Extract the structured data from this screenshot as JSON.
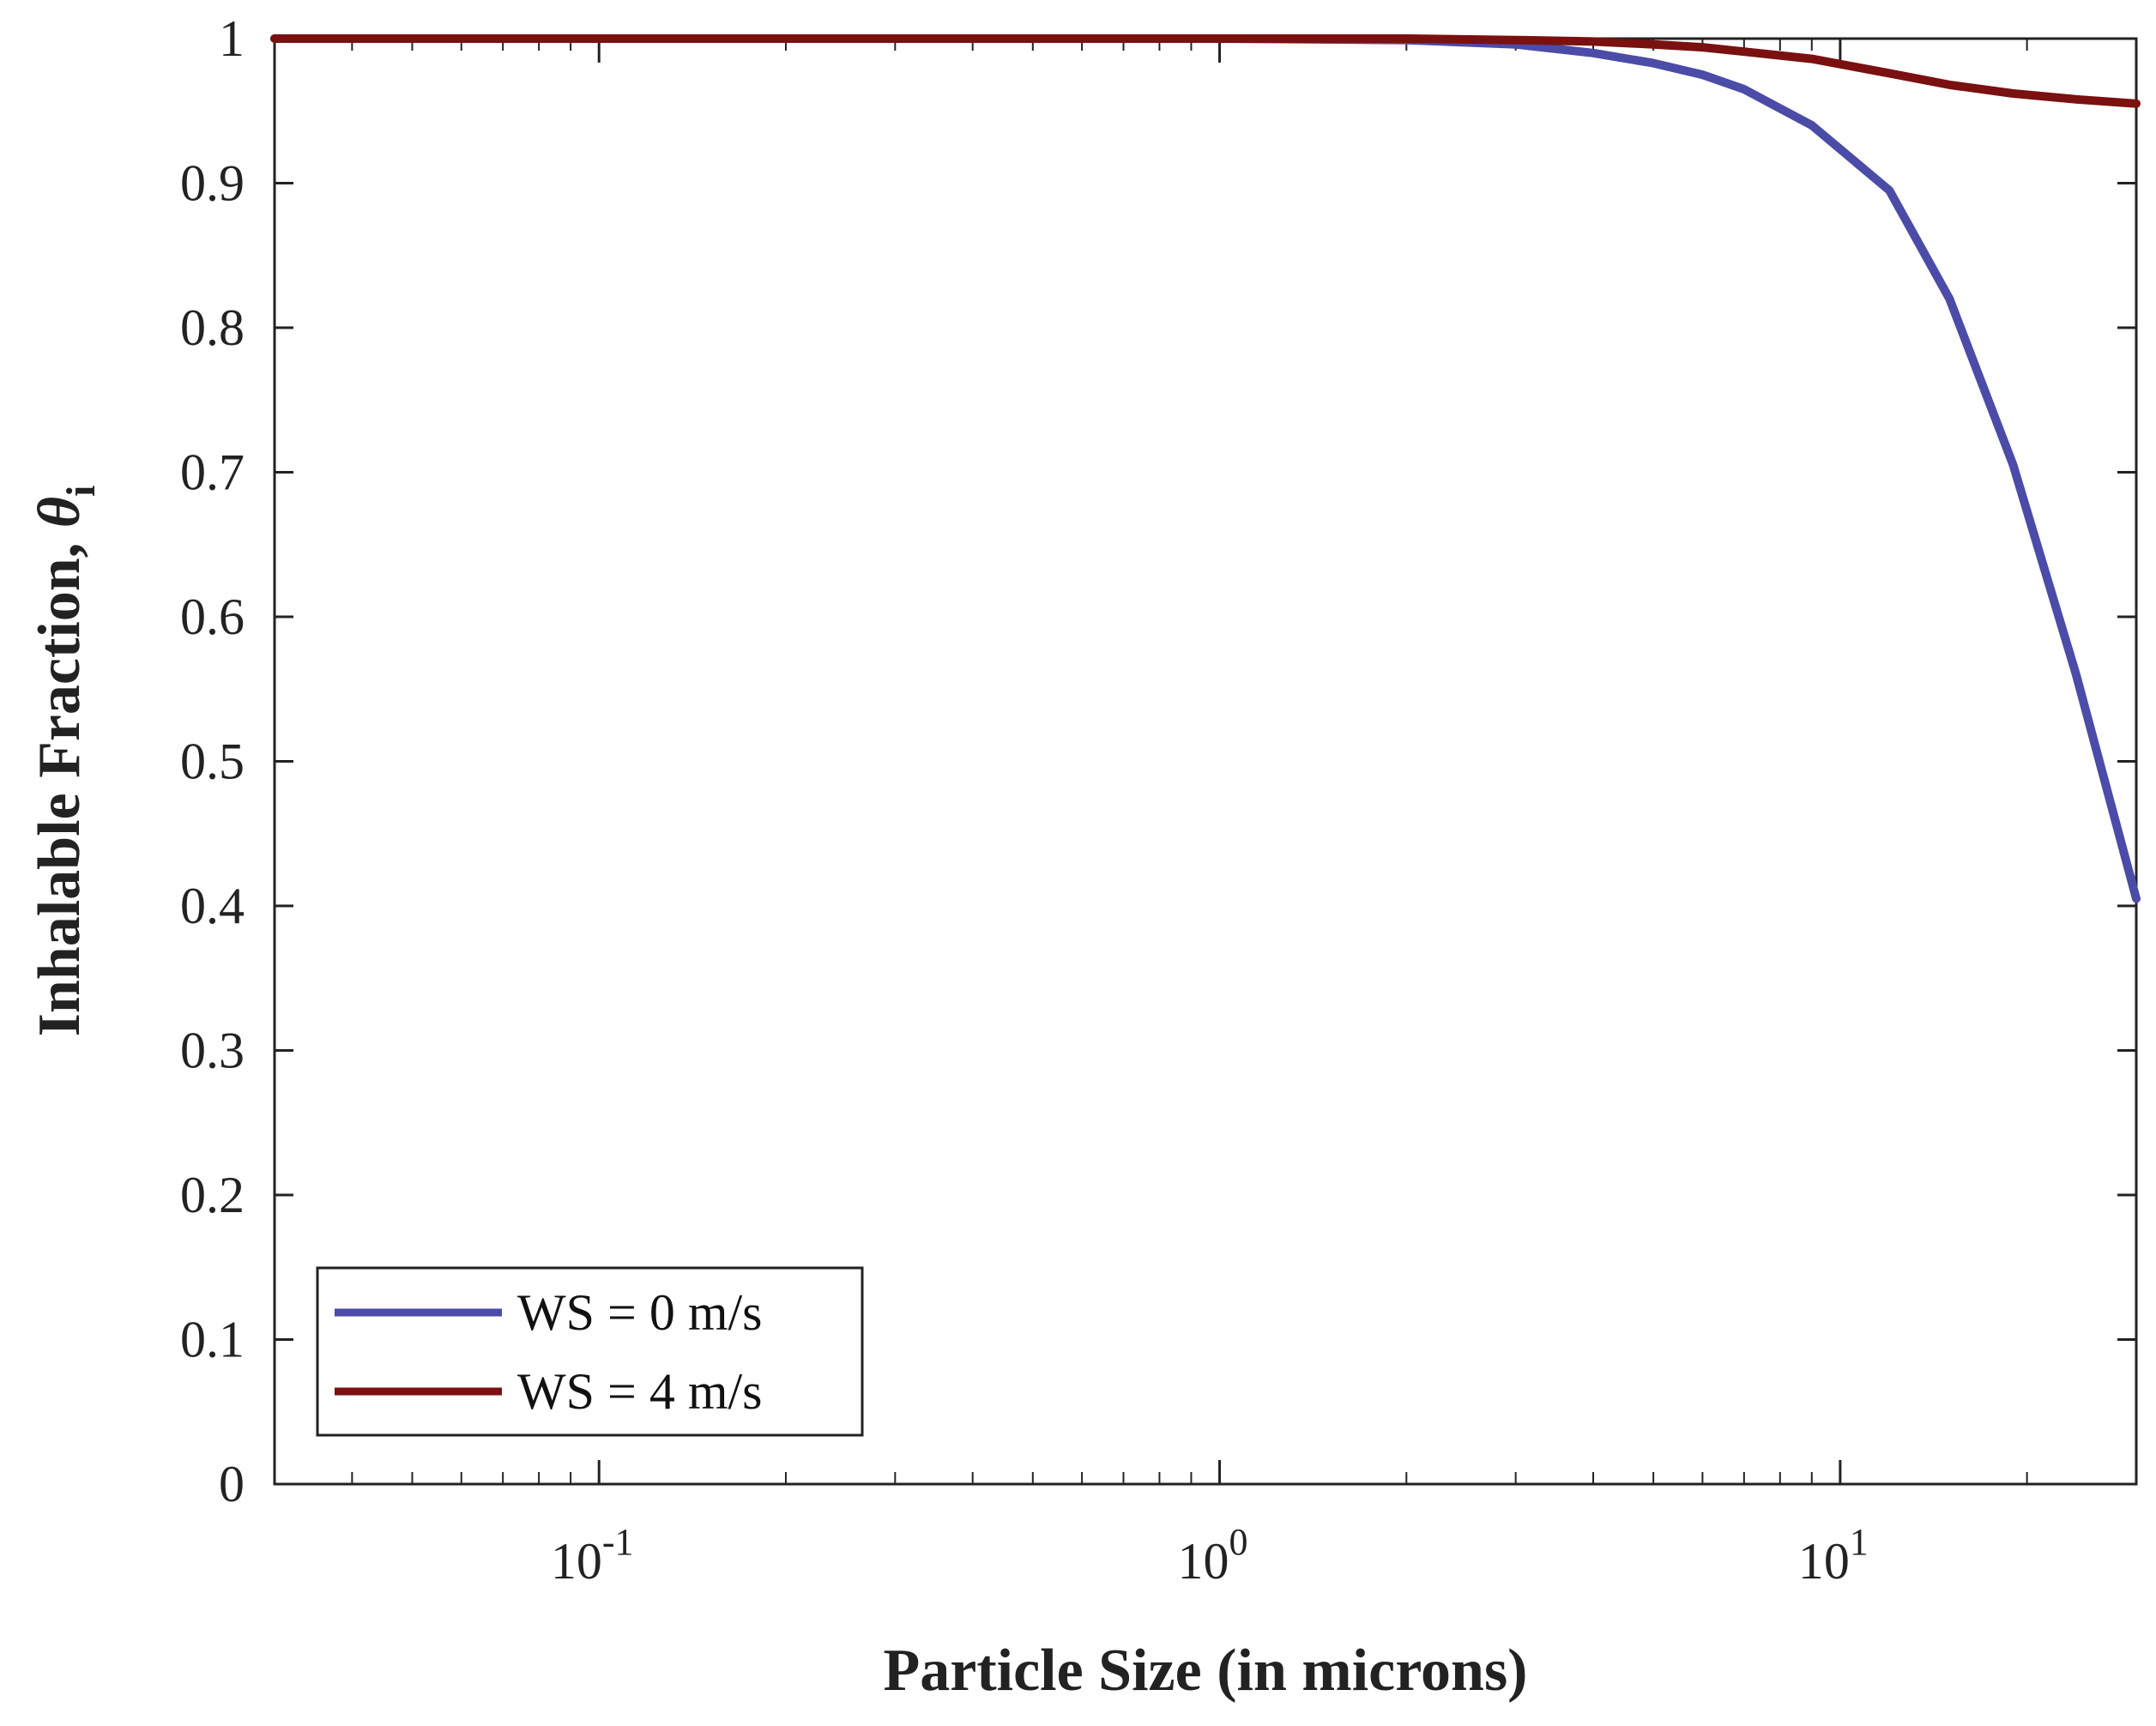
{
  "chart_data": {
    "type": "line",
    "xscale": "log",
    "xlim": [
      0.03,
      30
    ],
    "ylim": [
      0,
      1
    ],
    "xlabel": "Particle Size (in microns)",
    "ylabel": "Inhalable Fraction, ",
    "ylabel_symbol": "θ",
    "ylabel_subscript": "i",
    "grid": false,
    "legend_position": "bottom-left",
    "x_ticks": [
      {
        "value": 0.1,
        "base": "10",
        "exp": "-1"
      },
      {
        "value": 1,
        "base": "10",
        "exp": "0"
      },
      {
        "value": 10,
        "base": "10",
        "exp": "1"
      }
    ],
    "y_ticks": [
      {
        "value": 0,
        "label": "0"
      },
      {
        "value": 0.1,
        "label": "0.1"
      },
      {
        "value": 0.2,
        "label": "0.2"
      },
      {
        "value": 0.3,
        "label": "0.3"
      },
      {
        "value": 0.4,
        "label": "0.4"
      },
      {
        "value": 0.5,
        "label": "0.5"
      },
      {
        "value": 0.6,
        "label": "0.6"
      },
      {
        "value": 0.7,
        "label": "0.7"
      },
      {
        "value": 0.8,
        "label": "0.8"
      },
      {
        "value": 0.9,
        "label": "0.9"
      },
      {
        "value": 1,
        "label": "1"
      }
    ],
    "series": [
      {
        "name": "WS = 0 m/s",
        "color": "#4b4ba8",
        "x": [
          0.03,
          0.1,
          1,
          2,
          3,
          4,
          5,
          6,
          7,
          9,
          12,
          15,
          19,
          24,
          30
        ],
        "y": [
          1.0,
          1.0,
          1.0,
          0.999,
          0.996,
          0.99,
          0.983,
          0.975,
          0.965,
          0.94,
          0.895,
          0.82,
          0.705,
          0.56,
          0.405
        ]
      },
      {
        "name": "WS = 4 m/s",
        "color": "#7a1010",
        "x": [
          0.03,
          0.1,
          1,
          2,
          3,
          4,
          5,
          6,
          7,
          9,
          12,
          15,
          19,
          24,
          30
        ],
        "y": [
          1.0,
          1.0,
          1.0,
          1.0,
          0.999,
          0.998,
          0.996,
          0.994,
          0.991,
          0.986,
          0.976,
          0.968,
          0.962,
          0.958,
          0.955
        ]
      }
    ]
  }
}
